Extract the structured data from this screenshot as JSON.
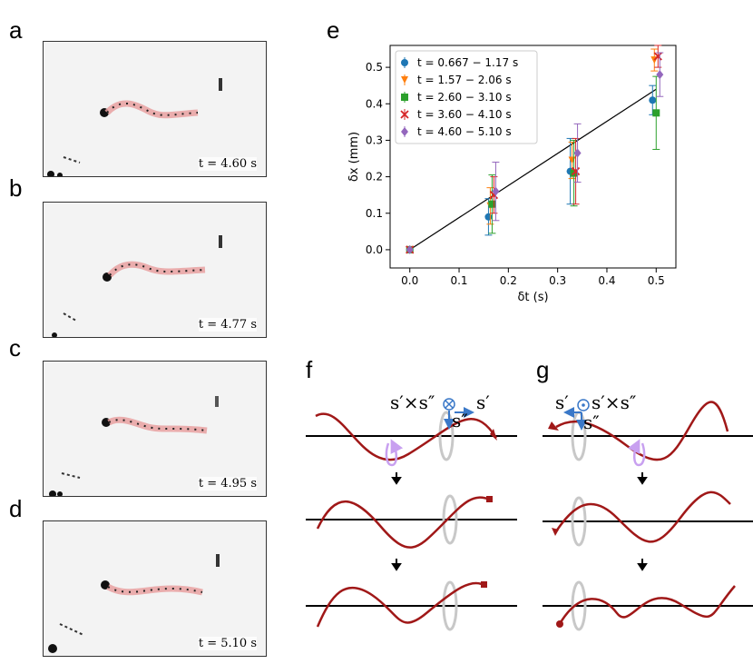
{
  "panels": {
    "a": {
      "letter": "a",
      "time": "t = 4.60 s"
    },
    "b": {
      "letter": "b",
      "time": "t = 4.77 s"
    },
    "c": {
      "letter": "c",
      "time": "t = 4.95 s"
    },
    "d": {
      "letter": "d",
      "time": "t = 5.10 s"
    },
    "e": {
      "letter": "e"
    },
    "f": {
      "letter": "f",
      "label_left": "s′×s″",
      "label_right": "s′",
      "label_down": "s″"
    },
    "g": {
      "letter": "g",
      "label_left": "s′",
      "label_right": "s′×s″",
      "label_down": "s″"
    }
  },
  "colors": {
    "worm": "#e8a0a0",
    "helix": "#a01818",
    "ring": "#c8c8c8",
    "arrow": "#3a78c8",
    "rotation": "#c8a0f0"
  },
  "chart_data": {
    "type": "scatter",
    "xlabel": "δt (s)",
    "ylabel": "δx (mm)",
    "xlim": [
      -0.04,
      0.54
    ],
    "ylim": [
      -0.05,
      0.56
    ],
    "xticks": [
      0.0,
      0.1,
      0.2,
      0.3,
      0.4,
      0.5
    ],
    "xtick_labels": [
      "0.0",
      "0.1",
      "0.2",
      "0.3",
      "0.4",
      "0.5"
    ],
    "yticks": [
      0.0,
      0.1,
      0.2,
      0.3,
      0.4,
      0.5
    ],
    "ytick_labels": [
      "0.0",
      "0.1",
      "0.2",
      "0.3",
      "0.4",
      "0.5"
    ],
    "legend_position": "top-left",
    "fit_line": {
      "x": [
        0.0,
        0.5
      ],
      "y": [
        0.0,
        0.44
      ]
    },
    "series": [
      {
        "name": "t = 0.667 − 1.17 s",
        "color": "#1f77b4",
        "marker": "circle",
        "x": [
          0.0,
          0.167,
          0.333,
          0.5
        ],
        "y": [
          0.0,
          0.09,
          0.215,
          0.41
        ],
        "err": [
          0.0,
          0.05,
          0.09,
          0.04
        ]
      },
      {
        "name": "t = 1.57 − 2.06 s",
        "color": "#ff7f0e",
        "marker": "triangle-down",
        "x": [
          0.0,
          0.167,
          0.333,
          0.5
        ],
        "y": [
          0.0,
          0.12,
          0.245,
          0.52
        ],
        "err": [
          0.0,
          0.05,
          0.05,
          0.03
        ]
      },
      {
        "name": "t = 2.60 − 3.10 s",
        "color": "#2ca02c",
        "marker": "square",
        "x": [
          0.0,
          0.167,
          0.333,
          0.5
        ],
        "y": [
          0.0,
          0.125,
          0.21,
          0.375
        ],
        "err": [
          0.0,
          0.08,
          0.09,
          0.1
        ]
      },
      {
        "name": "t = 3.60 − 4.10 s",
        "color": "#d62728",
        "marker": "x",
        "x": [
          0.0,
          0.167,
          0.333,
          0.5
        ],
        "y": [
          0.0,
          0.15,
          0.215,
          0.53
        ],
        "err": [
          0.0,
          0.05,
          0.09,
          0.03
        ]
      },
      {
        "name": "t = 4.60 − 5.10 s",
        "color": "#9467bd",
        "marker": "diamond",
        "x": [
          0.0,
          0.167,
          0.333,
          0.5
        ],
        "y": [
          0.0,
          0.16,
          0.265,
          0.48
        ],
        "err": [
          0.0,
          0.08,
          0.08,
          0.06
        ]
      }
    ]
  }
}
